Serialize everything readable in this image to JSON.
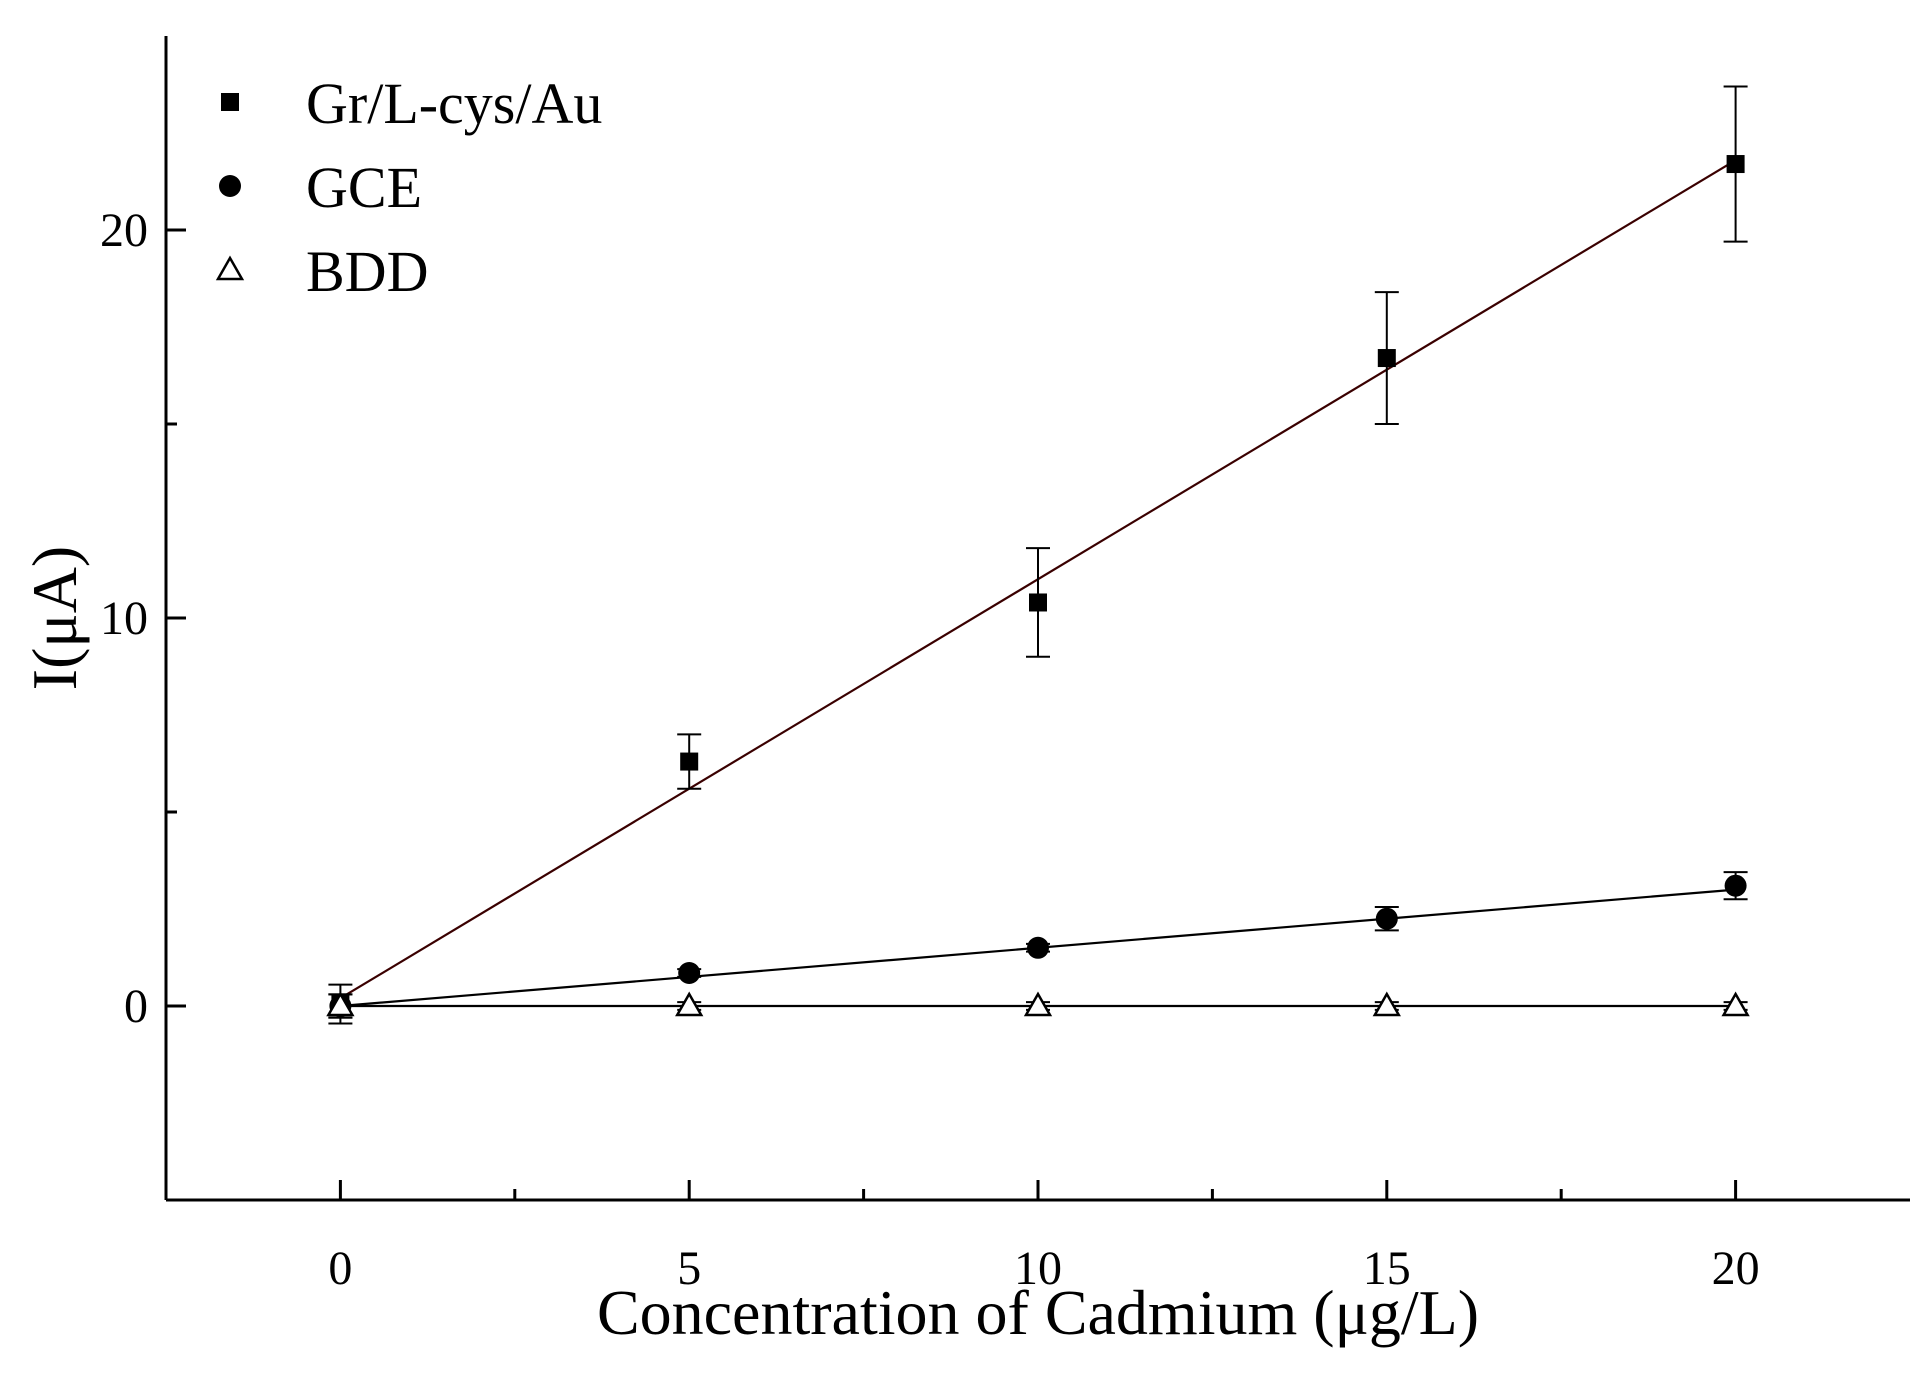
{
  "chart_data": {
    "type": "scatter",
    "title": "",
    "xlabel": "Concentration of Cadmium (μg/L)",
    "ylabel": "I(μA)",
    "xlim": [
      -2.5,
      22.5
    ],
    "ylim": [
      -5,
      25
    ],
    "x_ticks": [
      0,
      5,
      10,
      15,
      20
    ],
    "x_tick_labels": [
      "0",
      "5",
      "10",
      "15",
      "20"
    ],
    "x_minor_ticks": [
      2.5,
      7.5,
      12.5,
      17.5
    ],
    "y_ticks": [
      0,
      10,
      20
    ],
    "y_tick_labels": [
      "0",
      "10",
      "20"
    ],
    "y_minor_ticks": [
      -5,
      5,
      15
    ],
    "legend_position": "top-left",
    "grid": false,
    "series": [
      {
        "name": "Gr/L-cys/Au",
        "marker": "square",
        "x": [
          0,
          5,
          10,
          15,
          20
        ],
        "y": [
          0.05,
          6.3,
          10.4,
          16.7,
          21.7
        ],
        "error": [
          0.5,
          0.7,
          1.4,
          1.7,
          2.0
        ],
        "fit": {
          "x": [
            0,
            20
          ],
          "y": [
            0.2,
            21.8
          ]
        }
      },
      {
        "name": "GCE",
        "marker": "circle",
        "x": [
          0,
          5,
          10,
          15,
          20
        ],
        "y": [
          0.0,
          0.85,
          1.5,
          2.25,
          3.1
        ],
        "error": [
          0.3,
          0.1,
          0.1,
          0.3,
          0.35
        ],
        "fit": {
          "x": [
            0,
            20
          ],
          "y": [
            0.0,
            3.0
          ]
        }
      },
      {
        "name": "BDD",
        "marker": "open-triangle",
        "x": [
          0,
          5,
          10,
          15,
          20
        ],
        "y": [
          0.0,
          0.0,
          0.0,
          0.0,
          0.0
        ],
        "error": [
          0.3,
          0.1,
          0.1,
          0.1,
          0.1
        ],
        "fit": {
          "x": [
            0,
            20
          ],
          "y": [
            0.0,
            0.0
          ]
        }
      }
    ]
  }
}
